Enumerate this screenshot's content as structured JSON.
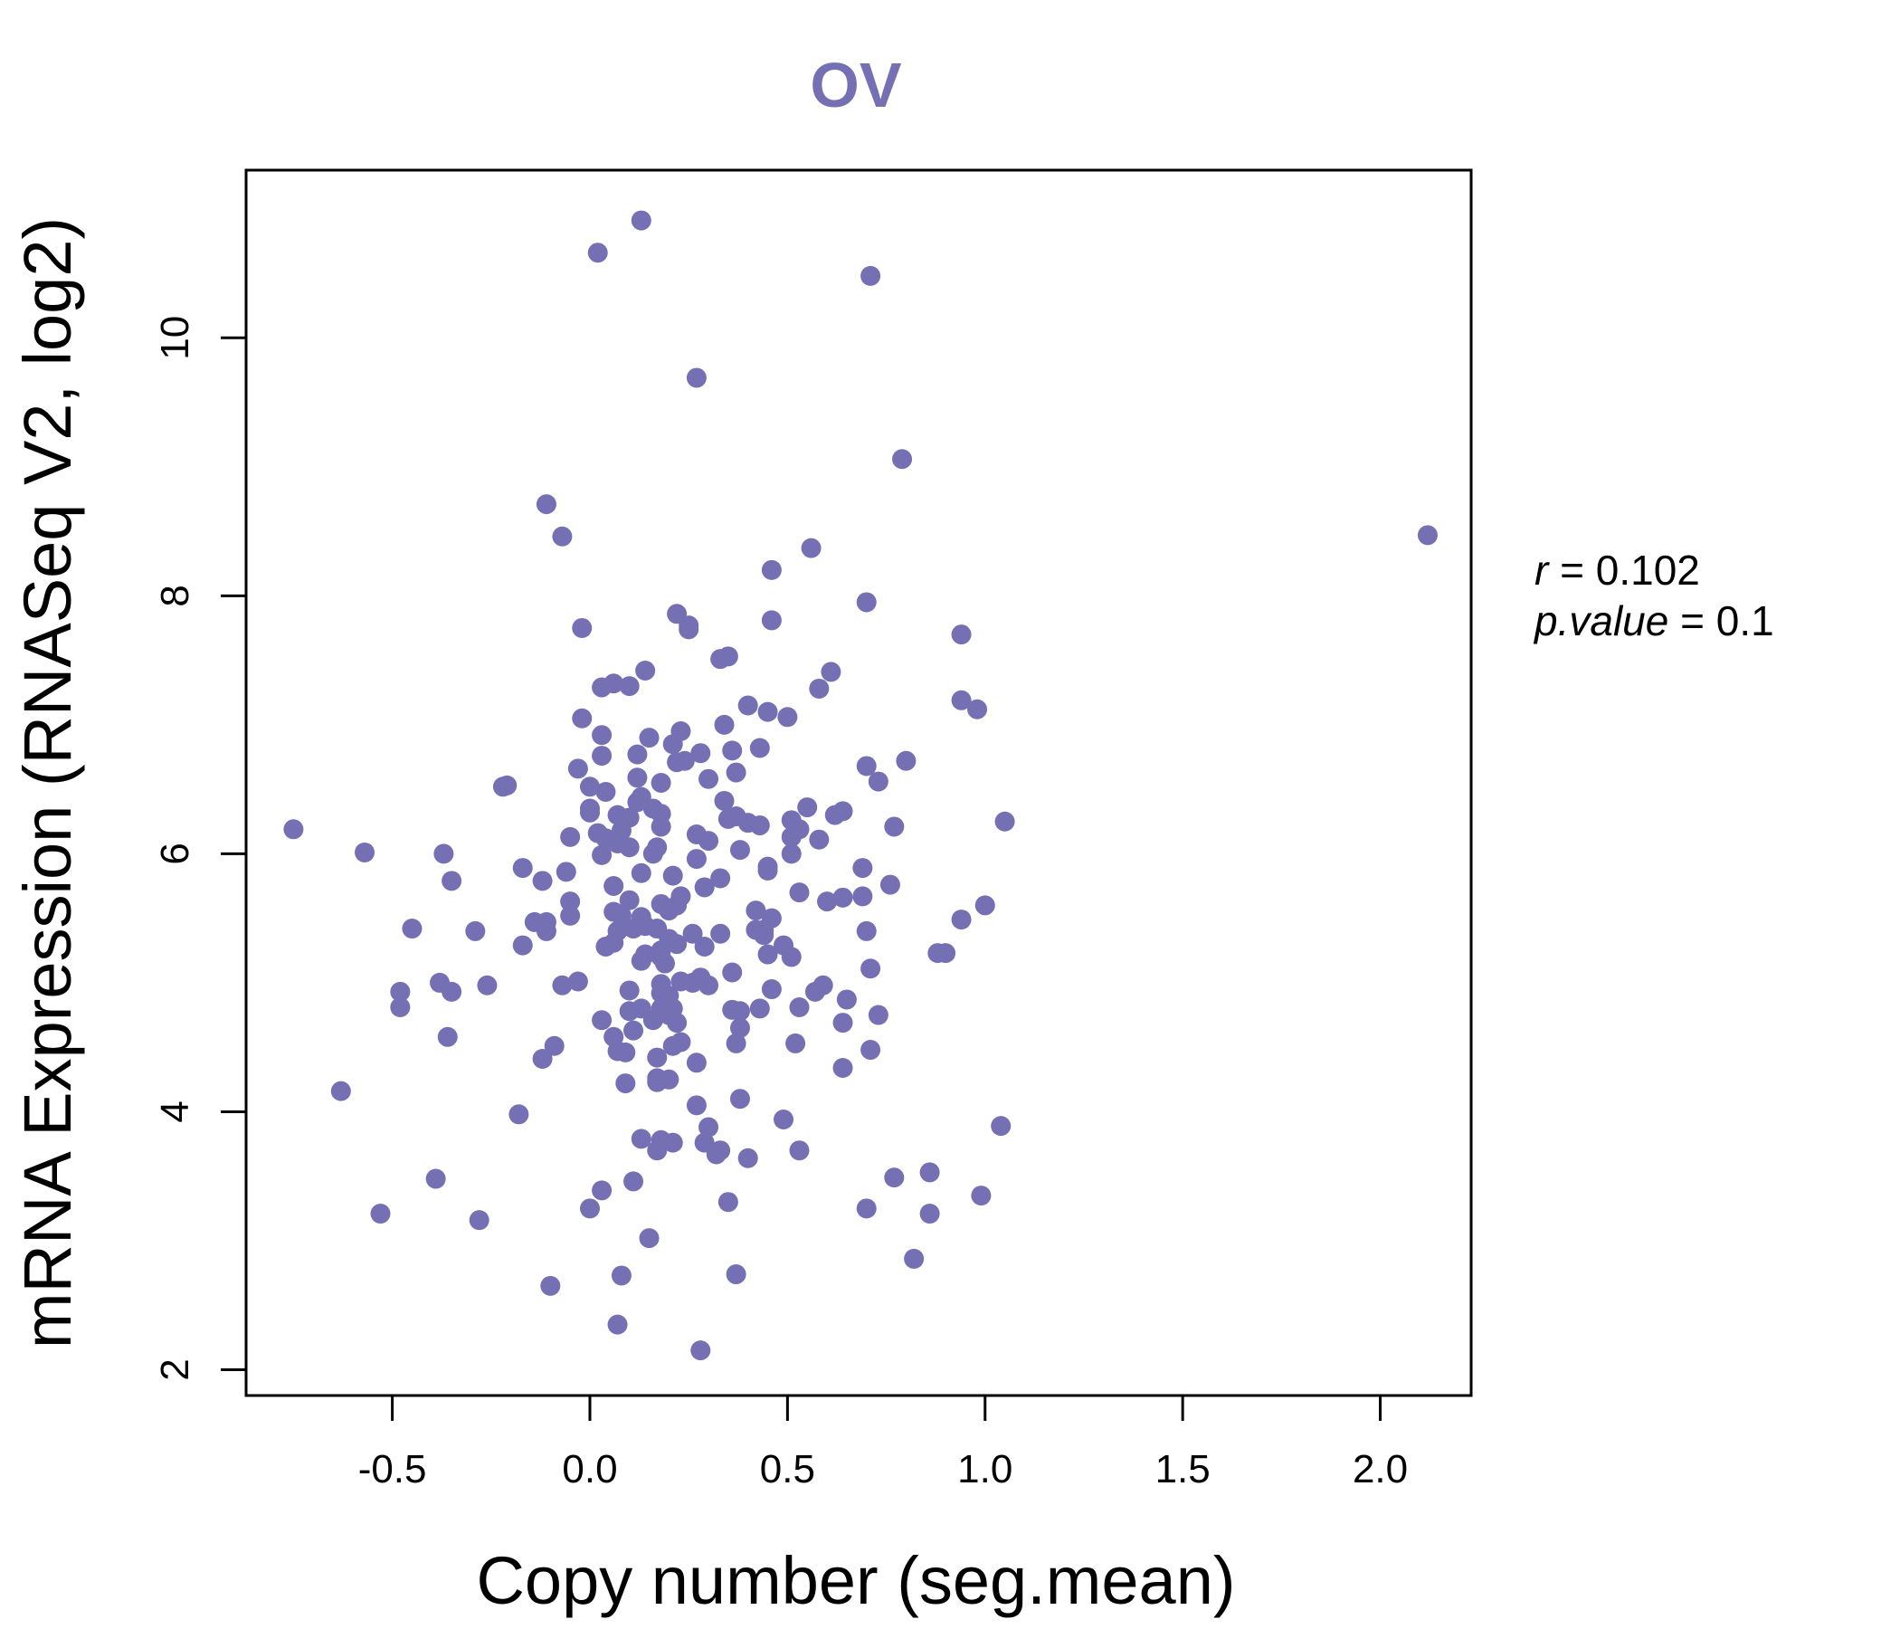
{
  "chart_data": {
    "type": "scatter",
    "title": "OV",
    "xlabel": "Copy number (seg.mean)",
    "ylabel": "mRNA Expression (RNASeq V2, log2)",
    "xlim": [
      -0.87,
      2.23
    ],
    "ylim": [
      1.8,
      11.3
    ],
    "xticks": [
      "-0.5",
      "0.0",
      "0.5",
      "1.0",
      "1.5",
      "2.0"
    ],
    "xtick_values": [
      -0.5,
      0.0,
      0.5,
      1.0,
      1.5,
      2.0
    ],
    "yticks": [
      "2",
      "4",
      "6",
      "8",
      "10"
    ],
    "ytick_values": [
      2,
      4,
      6,
      8,
      10
    ],
    "grid": false,
    "point_color": "#7570b3",
    "stats": {
      "r_label": "r",
      "r_value": "0.102",
      "p_label": "p.value",
      "p_value": "0.1"
    },
    "points": [
      [
        0.02,
        10.66
      ],
      [
        0.13,
        10.91
      ],
      [
        0.71,
        10.48
      ],
      [
        0.27,
        9.69
      ],
      [
        0.79,
        9.06
      ],
      [
        2.12,
        8.47
      ],
      [
        -0.11,
        8.71
      ],
      [
        -0.07,
        8.46
      ],
      [
        0.56,
        8.37
      ],
      [
        0.46,
        8.2
      ],
      [
        0.7,
        7.95
      ],
      [
        0.22,
        7.86
      ],
      [
        0.46,
        7.81
      ],
      [
        0.25,
        7.77
      ],
      [
        0.25,
        7.74
      ],
      [
        -0.02,
        7.75
      ],
      [
        0.94,
        7.7
      ],
      [
        0.33,
        7.51
      ],
      [
        0.35,
        7.53
      ],
      [
        0.14,
        7.42
      ],
      [
        0.61,
        7.41
      ],
      [
        0.03,
        7.29
      ],
      [
        0.06,
        7.32
      ],
      [
        0.1,
        7.3
      ],
      [
        0.58,
        7.28
      ],
      [
        0.94,
        7.19
      ],
      [
        0.98,
        7.12
      ],
      [
        0.4,
        7.15
      ],
      [
        0.45,
        7.1
      ],
      [
        0.5,
        7.06
      ],
      [
        -0.02,
        7.05
      ],
      [
        0.34,
        7.0
      ],
      [
        0.23,
        6.95
      ],
      [
        0.03,
        6.92
      ],
      [
        0.15,
        6.9
      ],
      [
        0.36,
        6.8
      ],
      [
        0.28,
        6.78
      ],
      [
        0.21,
        6.85
      ],
      [
        0.43,
        6.82
      ],
      [
        0.12,
        6.77
      ],
      [
        0.03,
        6.76
      ],
      [
        0.22,
        6.71
      ],
      [
        0.24,
        6.72
      ],
      [
        0.8,
        6.72
      ],
      [
        -0.03,
        6.66
      ],
      [
        0.7,
        6.68
      ],
      [
        0.37,
        6.63
      ],
      [
        0.3,
        6.58
      ],
      [
        0.12,
        6.59
      ],
      [
        0.73,
        6.56
      ],
      [
        -0.22,
        6.52
      ],
      [
        -0.21,
        6.53
      ],
      [
        0.0,
        6.52
      ],
      [
        0.18,
        6.55
      ],
      [
        0.04,
        6.48
      ],
      [
        0.13,
        6.44
      ],
      [
        0.34,
        6.41
      ],
      [
        0.12,
        6.4
      ],
      [
        0.16,
        6.35
      ],
      [
        0.55,
        6.36
      ],
      [
        0.0,
        6.35
      ],
      [
        0.0,
        6.32
      ],
      [
        0.07,
        6.3
      ],
      [
        0.18,
        6.31
      ],
      [
        0.37,
        6.29
      ],
      [
        0.64,
        6.33
      ],
      [
        0.62,
        6.3
      ],
      [
        0.1,
        6.28
      ],
      [
        0.35,
        6.27
      ],
      [
        0.43,
        6.22
      ],
      [
        0.51,
        6.26
      ],
      [
        0.4,
        6.24
      ],
      [
        0.53,
        6.19
      ],
      [
        0.77,
        6.21
      ],
      [
        1.05,
        6.25
      ],
      [
        -0.75,
        6.19
      ],
      [
        0.08,
        6.18
      ],
      [
        0.18,
        6.21
      ],
      [
        0.27,
        6.15
      ],
      [
        0.02,
        6.16
      ],
      [
        0.3,
        6.1
      ],
      [
        0.04,
        6.12
      ],
      [
        0.51,
        6.13
      ],
      [
        0.58,
        6.11
      ],
      [
        -0.05,
        6.13
      ],
      [
        0.07,
        6.08
      ],
      [
        0.1,
        6.05
      ],
      [
        0.38,
        6.03
      ],
      [
        0.17,
        6.05
      ],
      [
        0.03,
        5.99
      ],
      [
        -0.57,
        6.01
      ],
      [
        -0.37,
        6.0
      ],
      [
        0.16,
        6.0
      ],
      [
        0.51,
        6.0
      ],
      [
        0.27,
        5.96
      ],
      [
        0.45,
        5.9
      ],
      [
        0.69,
        5.89
      ],
      [
        -0.17,
        5.89
      ],
      [
        -0.06,
        5.86
      ],
      [
        0.13,
        5.85
      ],
      [
        0.45,
        5.87
      ],
      [
        0.21,
        5.83
      ],
      [
        0.33,
        5.81
      ],
      [
        -0.35,
        5.79
      ],
      [
        -0.12,
        5.79
      ],
      [
        0.76,
        5.76
      ],
      [
        0.29,
        5.74
      ],
      [
        0.06,
        5.75
      ],
      [
        0.53,
        5.7
      ],
      [
        0.23,
        5.67
      ],
      [
        0.1,
        5.64
      ],
      [
        0.64,
        5.66
      ],
      [
        0.6,
        5.63
      ],
      [
        0.69,
        5.67
      ],
      [
        -0.05,
        5.63
      ],
      [
        0.22,
        5.6
      ],
      [
        0.18,
        5.61
      ],
      [
        1.0,
        5.6
      ],
      [
        0.42,
        5.56
      ],
      [
        0.06,
        5.55
      ],
      [
        0.2,
        5.56
      ],
      [
        0.13,
        5.51
      ],
      [
        0.08,
        5.52
      ],
      [
        0.46,
        5.5
      ],
      [
        -0.14,
        5.47
      ],
      [
        -0.05,
        5.52
      ],
      [
        -0.11,
        5.47
      ],
      [
        0.94,
        5.49
      ],
      [
        0.14,
        5.44
      ],
      [
        0.17,
        5.42
      ],
      [
        0.42,
        5.41
      ],
      [
        0.44,
        5.41
      ],
      [
        0.11,
        5.42
      ],
      [
        -0.45,
        5.42
      ],
      [
        -0.29,
        5.4
      ],
      [
        0.07,
        5.4
      ],
      [
        0.26,
        5.38
      ],
      [
        0.33,
        5.38
      ],
      [
        0.44,
        5.37
      ],
      [
        -0.11,
        5.4
      ],
      [
        0.2,
        5.34
      ],
      [
        0.22,
        5.3
      ],
      [
        0.06,
        5.31
      ],
      [
        0.04,
        5.28
      ],
      [
        0.29,
        5.28
      ],
      [
        0.49,
        5.29
      ],
      [
        0.7,
        5.4
      ],
      [
        -0.17,
        5.29
      ],
      [
        0.18,
        5.25
      ],
      [
        0.14,
        5.22
      ],
      [
        0.18,
        5.2
      ],
      [
        0.45,
        5.22
      ],
      [
        0.51,
        5.2
      ],
      [
        0.88,
        5.23
      ],
      [
        0.9,
        5.23
      ],
      [
        0.13,
        5.17
      ],
      [
        0.19,
        5.15
      ],
      [
        0.36,
        5.08
      ],
      [
        0.71,
        5.11
      ],
      [
        0.28,
        5.04
      ],
      [
        0.23,
        5.01
      ],
      [
        0.26,
        5.0
      ],
      [
        -0.03,
        5.01
      ],
      [
        0.18,
        4.99
      ],
      [
        -0.38,
        5.0
      ],
      [
        -0.26,
        4.98
      ],
      [
        -0.07,
        4.98
      ],
      [
        0.59,
        4.98
      ],
      [
        0.3,
        4.98
      ],
      [
        0.46,
        4.95
      ],
      [
        0.1,
        4.94
      ],
      [
        -0.48,
        4.93
      ],
      [
        -0.35,
        4.93
      ],
      [
        0.57,
        4.93
      ],
      [
        0.18,
        4.92
      ],
      [
        0.2,
        4.9
      ],
      [
        0.65,
        4.87
      ],
      [
        0.21,
        4.8
      ],
      [
        0.53,
        4.81
      ],
      [
        0.18,
        4.8
      ],
      [
        0.13,
        4.8
      ],
      [
        0.1,
        4.78
      ],
      [
        0.43,
        4.8
      ],
      [
        -0.48,
        4.81
      ],
      [
        0.38,
        4.78
      ],
      [
        0.36,
        4.79
      ],
      [
        0.73,
        4.75
      ],
      [
        0.2,
        4.75
      ],
      [
        0.22,
        4.69
      ],
      [
        0.03,
        4.71
      ],
      [
        0.16,
        4.71
      ],
      [
        0.64,
        4.69
      ],
      [
        0.38,
        4.65
      ],
      [
        0.11,
        4.63
      ],
      [
        0.06,
        4.58
      ],
      [
        -0.36,
        4.58
      ],
      [
        0.23,
        4.54
      ],
      [
        0.37,
        4.53
      ],
      [
        0.52,
        4.53
      ],
      [
        0.21,
        4.51
      ],
      [
        -0.09,
        4.51
      ],
      [
        0.71,
        4.48
      ],
      [
        0.09,
        4.46
      ],
      [
        0.07,
        4.47
      ],
      [
        -0.12,
        4.41
      ],
      [
        0.17,
        4.42
      ],
      [
        0.27,
        4.38
      ],
      [
        0.64,
        4.34
      ],
      [
        0.17,
        4.26
      ],
      [
        0.2,
        4.25
      ],
      [
        0.09,
        4.22
      ],
      [
        0.17,
        4.23
      ],
      [
        -0.63,
        4.16
      ],
      [
        0.38,
        4.1
      ],
      [
        0.27,
        4.05
      ],
      [
        -0.18,
        3.98
      ],
      [
        0.49,
        3.94
      ],
      [
        1.04,
        3.89
      ],
      [
        0.3,
        3.88
      ],
      [
        0.13,
        3.79
      ],
      [
        0.18,
        3.78
      ],
      [
        0.21,
        3.76
      ],
      [
        0.29,
        3.76
      ],
      [
        0.17,
        3.7
      ],
      [
        0.33,
        3.7
      ],
      [
        0.53,
        3.7
      ],
      [
        0.32,
        3.67
      ],
      [
        0.4,
        3.64
      ],
      [
        0.77,
        3.49
      ],
      [
        0.86,
        3.53
      ],
      [
        -0.39,
        3.48
      ],
      [
        0.11,
        3.46
      ],
      [
        0.03,
        3.39
      ],
      [
        0.99,
        3.35
      ],
      [
        0.35,
        3.3
      ],
      [
        0.0,
        3.25
      ],
      [
        0.7,
        3.25
      ],
      [
        -0.53,
        3.21
      ],
      [
        0.86,
        3.21
      ],
      [
        -0.28,
        3.16
      ],
      [
        0.15,
        3.02
      ],
      [
        0.82,
        2.86
      ],
      [
        0.08,
        2.73
      ],
      [
        0.37,
        2.74
      ],
      [
        -0.1,
        2.65
      ],
      [
        0.07,
        2.35
      ],
      [
        0.28,
        2.15
      ]
    ]
  }
}
